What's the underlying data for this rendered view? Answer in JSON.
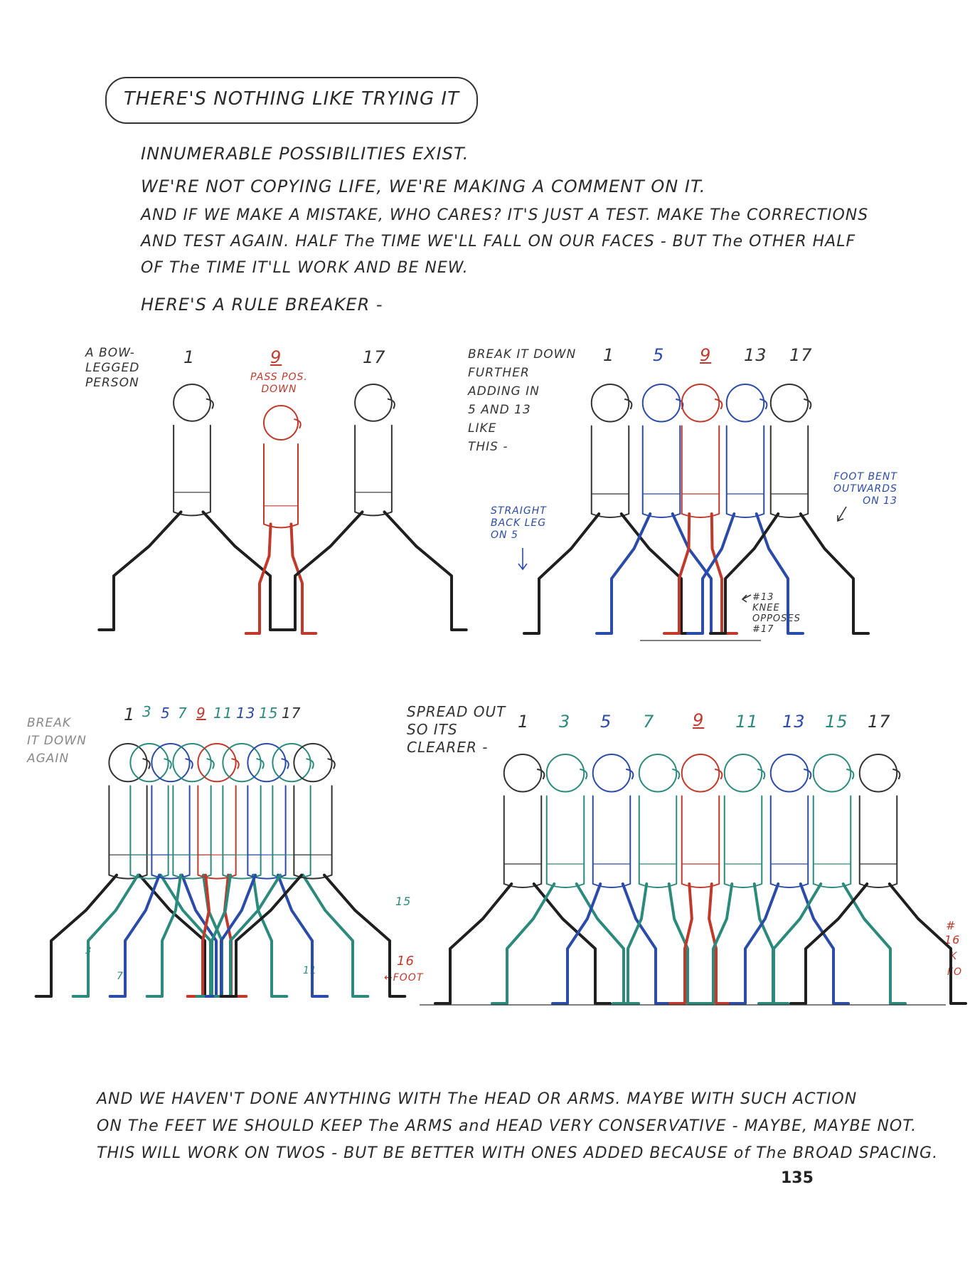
{
  "title": "THERE'S NOTHING LIKE TRYING IT",
  "paragraphs": [
    "INNUMERABLE POSSIBILITIES EXIST.",
    "WE'RE NOT COPYING LIFE, WE'RE MAKING A COMMENT ON IT.",
    "AND IF WE MAKE A MISTAKE, WHO CARES? IT'S JUST A TEST. MAKE The CORRECTIONS",
    "AND TEST AGAIN. HALF The TIME WE'LL FALL ON OUR FACES - BUT The OTHER HALF",
    "OF The TIME IT'LL WORK AND BE NEW.",
    "HERE'S A RULE BREAKER -"
  ],
  "panel1": {
    "label": "A BOW-\nLEGGED\nPERSON",
    "frames": [
      "1",
      "9",
      "17"
    ],
    "note": "PASS POS.\nDOWN"
  },
  "panel2": {
    "label": "BREAK IT DOWN\nFURTHER\nADDING IN\n5 AND 13\nLIKE\nTHIS -",
    "frames": [
      "1",
      "5",
      "9",
      "13",
      "17"
    ],
    "note_straight": "STRAIGHT\nBACK LEG\nON 5",
    "note_foot": "FOOT BENT\nOUTWARDS\nON 13",
    "note_knee": "#13\nKNEE\nOPPOSES\n#17"
  },
  "panel3": {
    "label": "BREAK\nIT DOWN\nAGAIN",
    "frames": [
      "1",
      "3",
      "5",
      "7",
      "9",
      "11",
      "13",
      "15",
      "17"
    ],
    "marks": [
      "3",
      "7",
      "11",
      "15",
      "16",
      "←FOOT"
    ]
  },
  "panel4": {
    "label": "SPREAD OUT\nSO ITS\nCLEARER -",
    "frames": [
      "1",
      "3",
      "5",
      "7",
      "9",
      "11",
      "13",
      "15",
      "17"
    ],
    "marks": [
      "#",
      "16",
      "K",
      "FO"
    ]
  },
  "closing": [
    "AND WE HAVEN'T DONE ANYTHING WITH The HEAD OR ARMS. MAYBE WITH SUCH ACTION",
    "ON The FEET WE SHOULD KEEP The ARMS and HEAD VERY CONSERVATIVE - MAYBE, MAYBE NOT.",
    "THIS WILL WORK ON TWOS - BUT BE BETTER WITH ONES ADDED BECAUSE of The BROAD SPACING."
  ],
  "page_number": "135",
  "colors": {
    "ink": "#2a2a2a",
    "red": "#c0392b",
    "blue": "#2a4ba8",
    "teal": "#2c8a7d",
    "black_leg": "#1f1f1f"
  }
}
